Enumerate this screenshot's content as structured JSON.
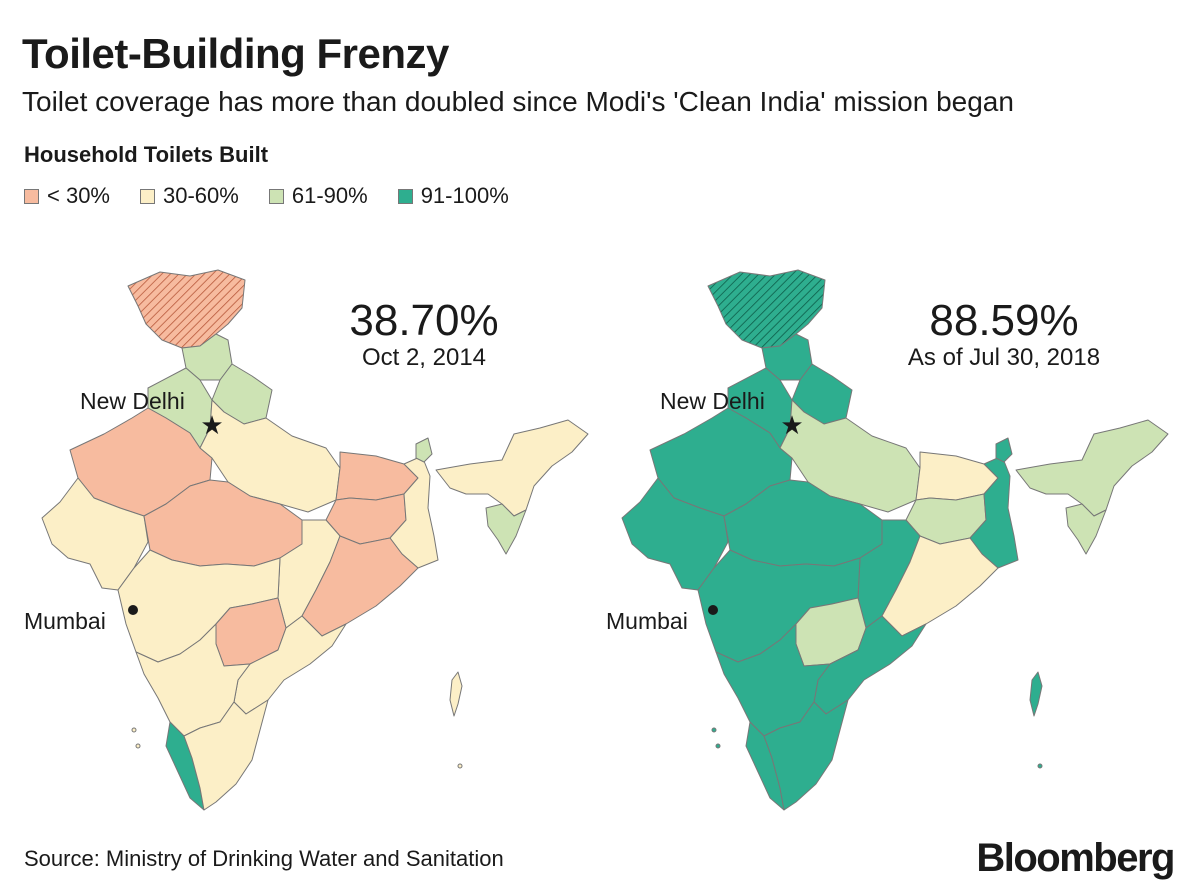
{
  "header": {
    "title": "Toilet-Building Frenzy",
    "subtitle": "Toilet coverage has more than doubled since Modi's 'Clean India' mission began"
  },
  "legend": {
    "title": "Household Toilets Built",
    "items": [
      {
        "label": "< 30%",
        "color": "#f7bb9f"
      },
      {
        "label": "30-60%",
        "color": "#fcefc7"
      },
      {
        "label": "61-90%",
        "color": "#cde3b4"
      },
      {
        "label": "91-100%",
        "color": "#2eae8f"
      }
    ]
  },
  "maps": [
    {
      "value": "38.70%",
      "date": "Oct 2, 2014",
      "capital": "New Delhi",
      "city": "Mumbai",
      "regions": {
        "kashmir": "< 30%",
        "himachal": "61-90%",
        "uttarakhand": "61-90%",
        "punjab": "61-90%",
        "rajasthan": "< 30%",
        "gujarat": "30-60%",
        "madhya_pradesh": "< 30%",
        "uttar_pradesh": "30-60%",
        "bihar": "< 30%",
        "jharkhand": "< 30%",
        "west_bengal": "30-60%",
        "odisha": "< 30%",
        "chhattisgarh": "30-60%",
        "maharashtra": "30-60%",
        "telangana": "< 30%",
        "andhra": "30-60%",
        "karnataka": "30-60%",
        "tamil_nadu": "30-60%",
        "kerala": "91-100%",
        "northeast": "30-60%",
        "sikkim": "61-90%",
        "manipur_mizoram": "61-90%",
        "islands": "30-60%"
      }
    },
    {
      "value": "88.59%",
      "date": "As of Jul 30, 2018",
      "capital": "New Delhi",
      "city": "Mumbai",
      "regions": {
        "kashmir": "91-100%",
        "himachal": "91-100%",
        "uttarakhand": "91-100%",
        "punjab": "91-100%",
        "rajasthan": "91-100%",
        "gujarat": "91-100%",
        "madhya_pradesh": "91-100%",
        "uttar_pradesh": "61-90%",
        "bihar": "30-60%",
        "jharkhand": "61-90%",
        "west_bengal": "91-100%",
        "odisha": "30-60%",
        "chhattisgarh": "91-100%",
        "maharashtra": "91-100%",
        "telangana": "61-90%",
        "andhra": "91-100%",
        "karnataka": "91-100%",
        "tamil_nadu": "91-100%",
        "kerala": "91-100%",
        "northeast": "61-90%",
        "sikkim": "91-100%",
        "manipur_mizoram": "61-90%",
        "islands": "91-100%"
      }
    }
  ],
  "footer": {
    "source": "Source: Ministry of Drinking Water and Sanitation",
    "brand": "Bloomberg"
  }
}
